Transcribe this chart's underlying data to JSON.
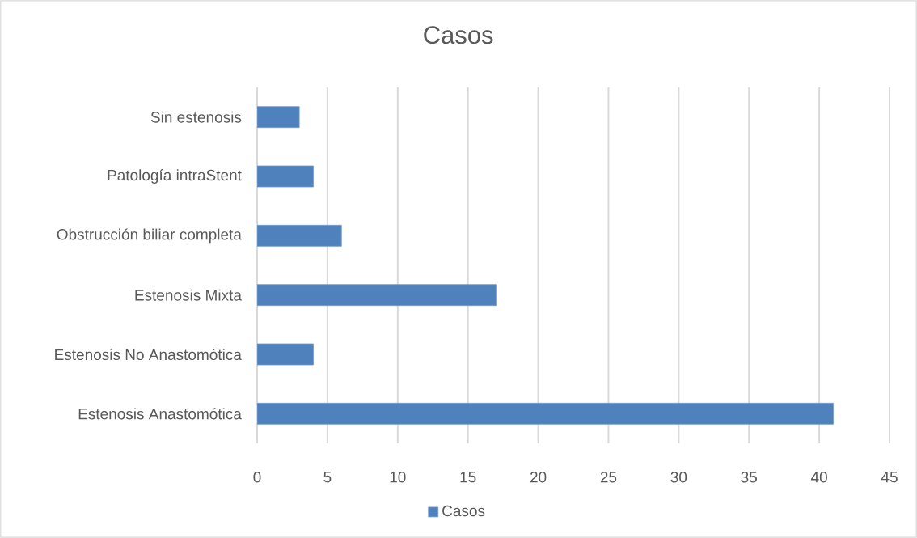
{
  "chart_data": {
    "type": "bar",
    "orientation": "horizontal",
    "title": "Casos",
    "categories": [
      "Sin estenosis",
      "Patología intraStent",
      "Obstrucción biliar completa",
      "Estenosis Mixta",
      "Estenosis No Anastomótica",
      "Estenosis Anastomótica"
    ],
    "series": [
      {
        "name": "Casos",
        "color": "#4f81bd",
        "values": [
          3,
          4,
          6,
          17,
          4,
          41
        ]
      }
    ],
    "xlim": [
      0,
      45
    ],
    "xticks": [
      0,
      5,
      10,
      15,
      20,
      25,
      30,
      35,
      40,
      45
    ],
    "grid": "x",
    "legend": "bottom"
  }
}
